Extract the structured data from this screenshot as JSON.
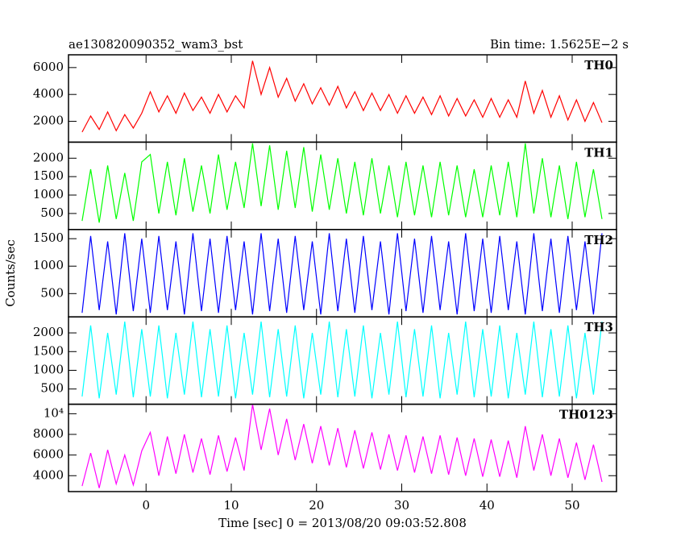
{
  "chart_data": {
    "type": "line",
    "title": "ae130820090352_wam3_bst",
    "subtitle": "Bin time: 1.5625E−2 s",
    "ylabel": "Counts/sec",
    "xlabel": "Time [sec] 0 = 2013/08/20 09:03:52.808",
    "xlim": [
      -9.1,
      55.2
    ],
    "xticks": [
      0,
      10,
      20,
      30,
      40,
      50
    ],
    "x": [
      -7.5,
      -6.5,
      -5.5,
      -4.5,
      -3.5,
      -2.5,
      -1.5,
      -0.5,
      0.5,
      1.5,
      2.5,
      3.5,
      4.5,
      5.5,
      6.5,
      7.5,
      8.5,
      9.5,
      10.5,
      11.5,
      12.5,
      13.5,
      14.5,
      15.5,
      16.5,
      17.5,
      18.5,
      19.5,
      20.5,
      21.5,
      22.5,
      23.5,
      24.5,
      25.5,
      26.5,
      27.5,
      28.5,
      29.5,
      30.5,
      31.5,
      32.5,
      33.5,
      34.5,
      35.5,
      36.5,
      37.5,
      38.5,
      39.5,
      40.5,
      41.5,
      42.5,
      43.5,
      44.5,
      45.5,
      46.5,
      47.5,
      48.5,
      49.5,
      50.5,
      51.5,
      52.5,
      53.5
    ],
    "series": [
      {
        "name": "TH0",
        "color": "#ff0000",
        "ylim": [
          450,
          6950
        ],
        "yticks": [
          2000,
          4000,
          6000
        ],
        "values": [
          1200,
          2400,
          1400,
          2700,
          1300,
          2500,
          1500,
          2600,
          4200,
          2700,
          3900,
          2600,
          4100,
          2800,
          3800,
          2600,
          4000,
          2700,
          3900,
          3000,
          6500,
          4000,
          6000,
          3800,
          5200,
          3500,
          4800,
          3300,
          4500,
          3200,
          4600,
          3000,
          4200,
          2800,
          4100,
          2800,
          4000,
          2600,
          3900,
          2600,
          3800,
          2500,
          3900,
          2400,
          3700,
          2400,
          3600,
          2300,
          3700,
          2300,
          3600,
          2300,
          5000,
          2600,
          4300,
          2300,
          3900,
          2100,
          3600,
          2000,
          3400,
          1900
        ]
      },
      {
        "name": "TH1",
        "color": "#00ff00",
        "ylim": [
          65,
          2435
        ],
        "yticks": [
          500,
          1000,
          1500,
          2000
        ],
        "values": [
          300,
          1700,
          250,
          1800,
          350,
          1600,
          300,
          1900,
          2100,
          500,
          1900,
          450,
          2000,
          550,
          1800,
          500,
          2100,
          600,
          1900,
          650,
          2400,
          700,
          2350,
          600,
          2200,
          650,
          2300,
          550,
          2100,
          600,
          2000,
          500,
          1900,
          450,
          2000,
          500,
          1800,
          400,
          1900,
          450,
          1800,
          400,
          1900,
          450,
          1800,
          400,
          1700,
          400,
          1800,
          450,
          1900,
          400,
          2400,
          500,
          2000,
          400,
          1800,
          350,
          1900,
          400,
          1700,
          350
        ]
      },
      {
        "name": "TH2",
        "color": "#0000ff",
        "ylim": [
          76,
          1667
        ],
        "yticks": [
          500,
          1000,
          1500
        ],
        "values": [
          150,
          1550,
          200,
          1450,
          120,
          1600,
          180,
          1500,
          150,
          1550,
          200,
          1450,
          120,
          1600,
          180,
          1500,
          150,
          1550,
          200,
          1450,
          120,
          1600,
          180,
          1500,
          150,
          1550,
          200,
          1450,
          120,
          1600,
          180,
          1500,
          150,
          1550,
          200,
          1450,
          120,
          1600,
          180,
          1500,
          150,
          1550,
          200,
          1450,
          120,
          1600,
          180,
          1500,
          150,
          1550,
          200,
          1450,
          120,
          1600,
          180,
          1500,
          150,
          1550,
          200,
          1450,
          120,
          1600
        ]
      },
      {
        "name": "TH3",
        "color": "#00ffff",
        "ylim": [
          93,
          2428
        ],
        "yticks": [
          500,
          1000,
          1500,
          2000
        ],
        "values": [
          300,
          2200,
          250,
          2000,
          350,
          2300,
          280,
          2100,
          300,
          2200,
          250,
          2000,
          350,
          2300,
          280,
          2100,
          300,
          2200,
          250,
          2000,
          350,
          2300,
          280,
          2100,
          300,
          2200,
          250,
          2000,
          350,
          2300,
          280,
          2100,
          300,
          2200,
          250,
          2000,
          350,
          2300,
          280,
          2100,
          300,
          2200,
          250,
          2000,
          350,
          2300,
          280,
          2100,
          300,
          2200,
          250,
          2000,
          350,
          2300,
          280,
          2100,
          300,
          2200,
          250,
          2000,
          350,
          2300
        ]
      },
      {
        "name": "TH0123",
        "color": "#ff00ff",
        "ylim": [
          2460,
          10920
        ],
        "yticks": [
          4000,
          6000,
          8000,
          {
            "value": 10000,
            "label": "10⁴"
          }
        ],
        "values": [
          3000,
          6200,
          2800,
          6500,
          3200,
          6000,
          3100,
          6400,
          8200,
          4000,
          7800,
          4200,
          8000,
          4300,
          7600,
          4100,
          7900,
          4400,
          7700,
          4500,
          10900,
          6500,
          10500,
          6000,
          9500,
          5500,
          9000,
          5200,
          8800,
          5000,
          8600,
          4800,
          8400,
          4700,
          8200,
          4600,
          8000,
          4500,
          7900,
          4300,
          7800,
          4200,
          7900,
          4100,
          7700,
          4000,
          7600,
          3900,
          7500,
          3900,
          7400,
          3800,
          8800,
          4500,
          8000,
          4000,
          7600,
          3800,
          7200,
          3600,
          7000,
          3400
        ]
      }
    ]
  }
}
